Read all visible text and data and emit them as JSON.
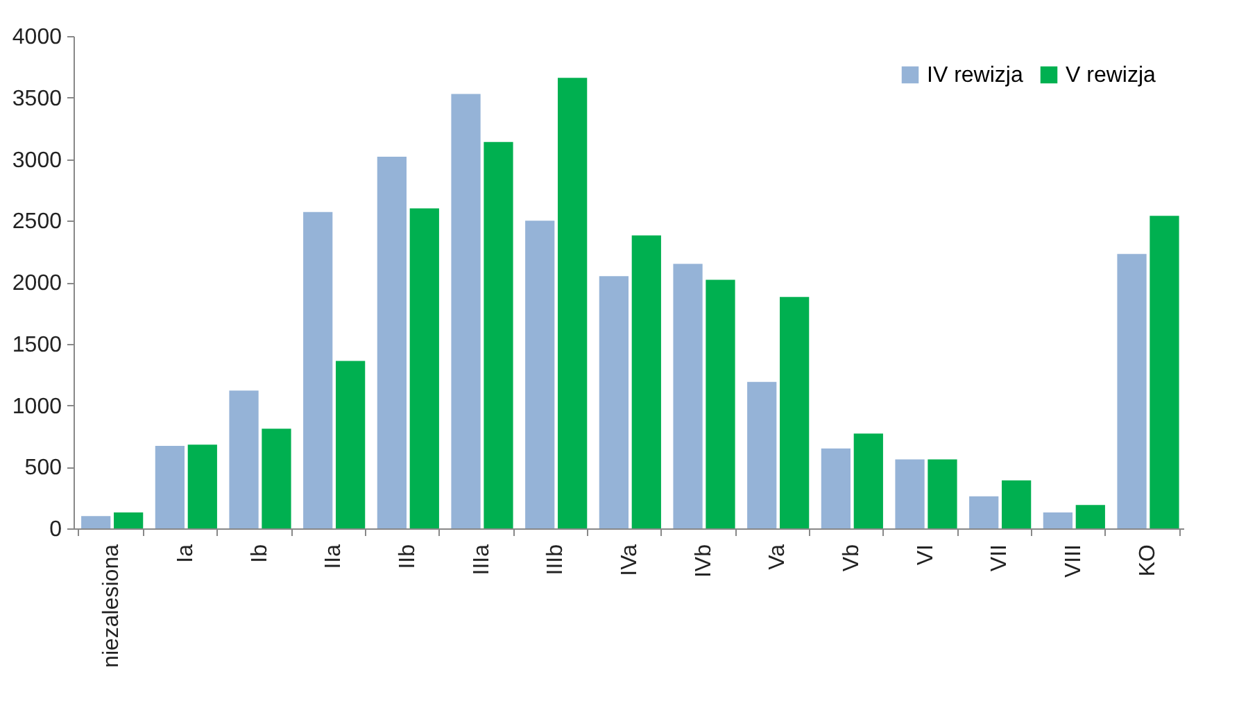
{
  "chart_data": {
    "type": "bar",
    "categories": [
      "niezalesiona",
      "Ia",
      "Ib",
      "IIa",
      "IIb",
      "IIIa",
      "IIIb",
      "IVa",
      "IVb",
      "Va",
      "Vb",
      "VI",
      "VII",
      "VIII",
      "KO"
    ],
    "series": [
      {
        "name": "IV rewizja",
        "color": "#95b3d7",
        "values": [
          100,
          670,
          1120,
          2570,
          3020,
          3530,
          2500,
          2050,
          2150,
          1190,
          650,
          560,
          260,
          130,
          2230
        ]
      },
      {
        "name": "V rewizja",
        "color": "#00b050",
        "values": [
          130,
          680,
          810,
          1360,
          2600,
          3140,
          3660,
          2380,
          2020,
          1880,
          770,
          560,
          390,
          190,
          2540
        ]
      }
    ],
    "ylim": [
      0,
      4000
    ],
    "yticks": [
      0,
      500,
      1000,
      1500,
      2000,
      2500,
      3000,
      3500,
      4000
    ],
    "grid": false,
    "legend": "top right"
  }
}
